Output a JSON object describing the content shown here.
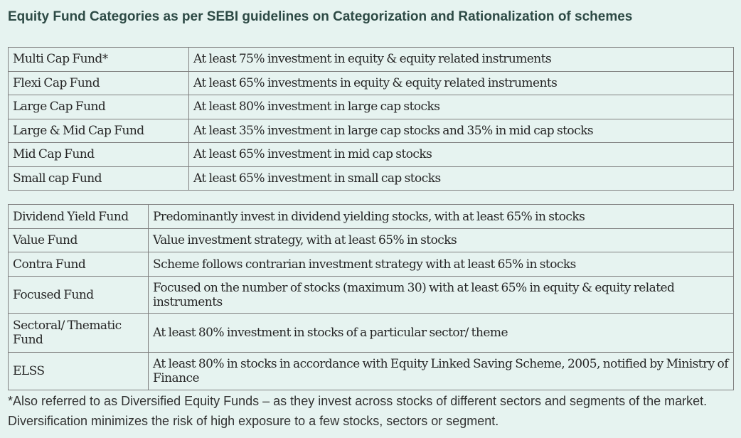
{
  "title": "Equity Fund Categories as per SEBI guidelines on Categorization and Rationalization of schemes",
  "table1": [
    {
      "category": "Multi Cap Fund*",
      "description": "At least 75% investment in equity & equity related instruments"
    },
    {
      "category": "Flexi Cap Fund",
      "description": "At least 65% investments in equity & equity related instruments"
    },
    {
      "category": "Large Cap Fund",
      "description": "At least 80% investment in large cap stocks"
    },
    {
      "category": "Large & Mid Cap Fund",
      "description": "At least 35% investment in large cap stocks and 35% in mid cap stocks"
    },
    {
      "category": "Mid Cap Fund",
      "description": "At least 65% investment in mid cap stocks"
    },
    {
      "category": "Small cap Fund",
      "description": "At least 65% investment in small cap stocks"
    }
  ],
  "table2": [
    {
      "category": "Dividend Yield Fund",
      "description": "Predominantly invest in dividend yielding stocks, with at least 65% in stocks"
    },
    {
      "category": "Value Fund",
      "description": "Value investment strategy, with at least 65% in stocks"
    },
    {
      "category": "Contra Fund",
      "description": "Scheme follows contrarian investment strategy with at least 65% in stocks"
    },
    {
      "category": "Focused Fund",
      "description": "Focused on the number of stocks (maximum 30) with at least 65% in equity & equity related instruments"
    },
    {
      "category": "Sectoral/ Thematic Fund",
      "description": "At least 80% investment in stocks of a particular sector/ theme"
    },
    {
      "category": "ELSS",
      "description": "At least 80% in stocks in accordance with Equity Linked Saving Scheme, 2005, notified by Ministry of Finance"
    }
  ],
  "footnote": "*Also referred to as Diversified Equity Funds – as they invest across stocks of different sectors and segments of the market. Diversification minimizes the risk of high exposure to a few stocks, sectors or segment."
}
